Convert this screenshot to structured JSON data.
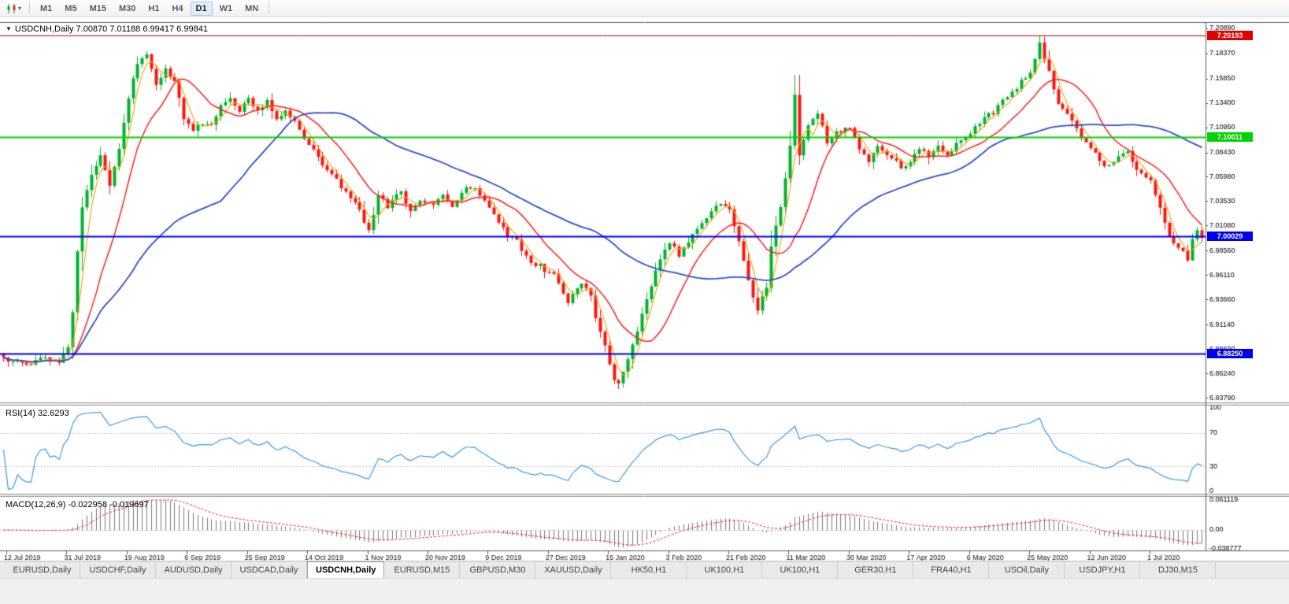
{
  "toolbar": {
    "timeframes": [
      {
        "label": "M1",
        "active": false
      },
      {
        "label": "M5",
        "active": false
      },
      {
        "label": "M15",
        "active": false
      },
      {
        "label": "M30",
        "active": false
      },
      {
        "label": "H1",
        "active": false
      },
      {
        "label": "H4",
        "active": false
      },
      {
        "label": "D1",
        "active": true
      },
      {
        "label": "W1",
        "active": false
      },
      {
        "label": "MN",
        "active": false
      }
    ]
  },
  "chart": {
    "title": "USDCNH,Daily 7.00870 7.01188 6.99417 6.99841",
    "symbol": "USDCNH",
    "timeframe": "Daily",
    "open": "7.00870",
    "high": "7.01188",
    "low": "6.99417",
    "close": "6.99841"
  },
  "indicators": {
    "rsi_label": "RSI(14) 32.6293",
    "macd_label": "MACD(12,26,9) -0.022958 -0.019697"
  },
  "chart_data": {
    "type": "candlestick",
    "symbol": "USDCNH",
    "timeframe": "Daily",
    "colors": {
      "candle_up": "#00b42e",
      "candle_down": "#ff1414",
      "background": "#ffffff",
      "axis_text": "#000000"
    },
    "price_scale": {
      "max": 7.2152,
      "min": 6.834
    },
    "price_axis_ticks": [
      "7.20890",
      "7.18370",
      "7.15850",
      "7.13400",
      "7.10950",
      "7.08430",
      "7.05980",
      "7.03530",
      "7.01080",
      "6.98560",
      "6.96110",
      "6.93660",
      "6.91140",
      "6.88690",
      "6.86240",
      "6.83790"
    ],
    "date_labels": [
      "12 Jul 2019",
      "31 Jul 2019",
      "19 Aug 2019",
      "6 Sep 2019",
      "25 Sep 2019",
      "14 Oct 2019",
      "1 Nov 2019",
      "20 Nov 2019",
      "9 Dec 2019",
      "27 Dec 2019",
      "15 Jan 2020",
      "3 Feb 2020",
      "21 Feb 2020",
      "11 Mar 2020",
      "30 Mar 2020",
      "17 Apr 2020",
      "6 May 2020",
      "25 May 2020",
      "12 Jun 2020",
      "1 Jul 2020"
    ],
    "hlines": [
      {
        "label": "7.20193",
        "price": 7.20193,
        "color": "#e00000",
        "width": 1
      },
      {
        "label": "7.10011",
        "price": 7.10011,
        "color": "#00d400",
        "width": 2
      },
      {
        "label": "7.00029",
        "price": 7.00029,
        "color": "#0000f0",
        "width": 2
      },
      {
        "label": "6.88250",
        "price": 6.8825,
        "color": "#0000f0",
        "width": 2
      }
    ],
    "moving_averages": [
      {
        "name": "ma-fast",
        "period": 4,
        "color": "#f0a500",
        "width": 1.1
      },
      {
        "name": "ma-medium",
        "period": 13,
        "color": "#ff2020",
        "width": 1.5
      },
      {
        "name": "ma-slow",
        "period": 48,
        "color": "#3050c8",
        "width": 1.8
      }
    ],
    "candles": {
      "count": 260,
      "close_anchors": [
        [
          0,
          6.876
        ],
        [
          5,
          6.872
        ],
        [
          9,
          6.877
        ],
        [
          12,
          6.871
        ],
        [
          14,
          6.888
        ],
        [
          15,
          6.925
        ],
        [
          16,
          6.985
        ],
        [
          17,
          7.03
        ],
        [
          19,
          7.06
        ],
        [
          21,
          7.08
        ],
        [
          23,
          7.05
        ],
        [
          25,
          7.09
        ],
        [
          27,
          7.14
        ],
        [
          29,
          7.175
        ],
        [
          31,
          7.185
        ],
        [
          33,
          7.15
        ],
        [
          35,
          7.17
        ],
        [
          37,
          7.155
        ],
        [
          39,
          7.12
        ],
        [
          41,
          7.105
        ],
        [
          43,
          7.115
        ],
        [
          45,
          7.11
        ],
        [
          47,
          7.13
        ],
        [
          49,
          7.14
        ],
        [
          51,
          7.125
        ],
        [
          53,
          7.14
        ],
        [
          55,
          7.125
        ],
        [
          57,
          7.135
        ],
        [
          59,
          7.12
        ],
        [
          61,
          7.125
        ],
        [
          63,
          7.115
        ],
        [
          65,
          7.1
        ],
        [
          67,
          7.085
        ],
        [
          69,
          7.07
        ],
        [
          71,
          7.065
        ],
        [
          73,
          7.05
        ],
        [
          75,
          7.04
        ],
        [
          77,
          7.025
        ],
        [
          79,
          7.005
        ],
        [
          81,
          7.04
        ],
        [
          83,
          7.03
        ],
        [
          86,
          7.045
        ],
        [
          88,
          7.025
        ],
        [
          90,
          7.035
        ],
        [
          93,
          7.03
        ],
        [
          95,
          7.04
        ],
        [
          97,
          7.03
        ],
        [
          99,
          7.045
        ],
        [
          102,
          7.05
        ],
        [
          105,
          7.03
        ],
        [
          107,
          7.015
        ],
        [
          109,
          7.0
        ],
        [
          111,
          6.995
        ],
        [
          112,
          6.985
        ],
        [
          114,
          6.975
        ],
        [
          116,
          6.97
        ],
        [
          119,
          6.96
        ],
        [
          122,
          6.935
        ],
        [
          125,
          6.955
        ],
        [
          127,
          6.94
        ],
        [
          128,
          6.92
        ],
        [
          130,
          6.89
        ],
        [
          132,
          6.855
        ],
        [
          133,
          6.85
        ],
        [
          135,
          6.875
        ],
        [
          137,
          6.905
        ],
        [
          139,
          6.935
        ],
        [
          141,
          6.965
        ],
        [
          144,
          6.995
        ],
        [
          146,
          6.98
        ],
        [
          148,
          6.995
        ],
        [
          150,
          7.01
        ],
        [
          152,
          7.02
        ],
        [
          155,
          7.035
        ],
        [
          157,
          7.025
        ],
        [
          159,
          6.995
        ],
        [
          161,
          6.955
        ],
        [
          163,
          6.925
        ],
        [
          165,
          6.95
        ],
        [
          166,
          6.99
        ],
        [
          168,
          7.03
        ],
        [
          170,
          7.09
        ],
        [
          171,
          7.14
        ],
        [
          172,
          7.08
        ],
        [
          174,
          7.11
        ],
        [
          176,
          7.125
        ],
        [
          178,
          7.095
        ],
        [
          180,
          7.105
        ],
        [
          183,
          7.11
        ],
        [
          185,
          7.085
        ],
        [
          187,
          7.075
        ],
        [
          189,
          7.09
        ],
        [
          192,
          7.08
        ],
        [
          194,
          7.07
        ],
        [
          196,
          7.075
        ],
        [
          198,
          7.09
        ],
        [
          200,
          7.08
        ],
        [
          202,
          7.09
        ],
        [
          204,
          7.08
        ],
        [
          206,
          7.095
        ],
        [
          209,
          7.105
        ],
        [
          211,
          7.115
        ],
        [
          214,
          7.125
        ],
        [
          216,
          7.135
        ],
        [
          219,
          7.15
        ],
        [
          222,
          7.165
        ],
        [
          224,
          7.195
        ],
        [
          226,
          7.165
        ],
        [
          228,
          7.135
        ],
        [
          231,
          7.115
        ],
        [
          233,
          7.1
        ],
        [
          235,
          7.09
        ],
        [
          237,
          7.075
        ],
        [
          239,
          7.07
        ],
        [
          241,
          7.08
        ],
        [
          243,
          7.085
        ],
        [
          245,
          7.065
        ],
        [
          248,
          7.055
        ],
        [
          250,
          7.03
        ],
        [
          252,
          7.0
        ],
        [
          254,
          6.99
        ],
        [
          256,
          6.978
        ],
        [
          257,
          6.995
        ],
        [
          258,
          7.005
        ],
        [
          259,
          6.99841
        ]
      ]
    },
    "rsi": {
      "period": 14,
      "current": 32.6293,
      "color": "#3d9be9",
      "levels": [
        100,
        70,
        30,
        0
      ]
    },
    "macd": {
      "fast": 12,
      "slow": 26,
      "signal": 9,
      "main_value": -0.022958,
      "signal_value": -0.019697,
      "histogram_color": "#7a7a7a",
      "signal_color": "#ff2020",
      "axis_labels": [
        "0.061119",
        "0.00",
        "-0.038777"
      ],
      "axis_max": 0.061119,
      "axis_min": -0.038777
    }
  },
  "tabs": {
    "active_index": 4,
    "items": [
      "EURUSD,Daily",
      "USDCHF,Daily",
      "AUDUSD,Daily",
      "USDCAD,Daily",
      "USDCNH,Daily",
      "EURUSD,M15",
      "GBPUSD,M30",
      "XAUUSD,Daily",
      "HK50,H1",
      "UK100,H1",
      "UK100,H1",
      "GER30,H1",
      "FRA40,H1",
      "USOil,Daily",
      "USDJPY,H1",
      "DJ30,M15"
    ]
  }
}
